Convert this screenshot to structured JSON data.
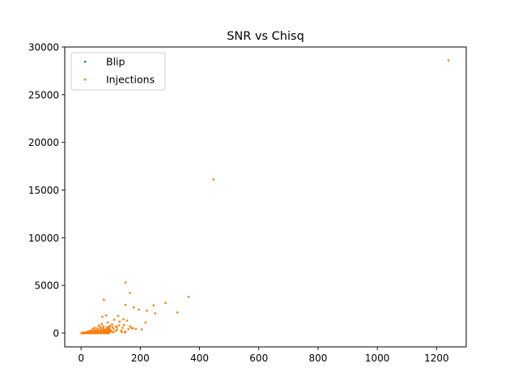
{
  "chart_data": {
    "type": "scatter",
    "title": "SNR vs Chisq",
    "xlabel": "",
    "ylabel": "",
    "xlim": [
      -55,
      1300
    ],
    "ylim": [
      -1450,
      30000
    ],
    "xticks": [
      0,
      200,
      400,
      600,
      800,
      1000,
      1200
    ],
    "yticks": [
      0,
      5000,
      10000,
      15000,
      20000,
      25000,
      30000
    ],
    "grid": false,
    "legend_position": "top-left",
    "series": [
      {
        "name": "Blip",
        "color": "#1f77b4",
        "points": [
          [
            2,
            5
          ],
          [
            4,
            12
          ],
          [
            5,
            8
          ],
          [
            6,
            20
          ],
          [
            8,
            15
          ]
        ]
      },
      {
        "name": "Injections",
        "color": "#ff7f0e",
        "points": [
          [
            1240,
            28600
          ],
          [
            447,
            16100
          ],
          [
            150,
            5300
          ],
          [
            165,
            4200
          ],
          [
            363,
            3800
          ],
          [
            77,
            3500
          ],
          [
            285,
            3150
          ],
          [
            150,
            2950
          ],
          [
            245,
            2900
          ],
          [
            178,
            2700
          ],
          [
            195,
            2450
          ],
          [
            222,
            2350
          ],
          [
            250,
            2050
          ],
          [
            325,
            2150
          ],
          [
            72,
            1700
          ],
          [
            85,
            1850
          ],
          [
            125,
            1800
          ],
          [
            143,
            1450
          ],
          [
            155,
            1300
          ],
          [
            112,
            1400
          ],
          [
            218,
            1100
          ],
          [
            130,
            1200
          ],
          [
            90,
            1100
          ],
          [
            105,
            900
          ],
          [
            165,
            700
          ],
          [
            175,
            500
          ],
          [
            95,
            650
          ],
          [
            120,
            600
          ],
          [
            60,
            800
          ],
          [
            70,
            950
          ],
          [
            45,
            550
          ],
          [
            40,
            400
          ],
          [
            55,
            300
          ],
          [
            35,
            250
          ],
          [
            25,
            150
          ],
          [
            20,
            100
          ],
          [
            15,
            60
          ],
          [
            10,
            30
          ],
          [
            5,
            10
          ],
          [
            30,
            200
          ],
          [
            50,
            350
          ],
          [
            65,
            450
          ],
          [
            75,
            500
          ],
          [
            80,
            350
          ],
          [
            100,
            300
          ],
          [
            110,
            450
          ],
          [
            135,
            250
          ],
          [
            140,
            550
          ],
          [
            160,
            400
          ],
          [
            150,
            150
          ],
          [
            88,
            600
          ],
          [
            98,
            750
          ],
          [
            62,
            150
          ],
          [
            48,
            100
          ],
          [
            38,
            50
          ],
          [
            28,
            80
          ],
          [
            18,
            40
          ],
          [
            12,
            20
          ],
          [
            8,
            5
          ],
          [
            42,
            180
          ],
          [
            58,
            220
          ],
          [
            68,
            280
          ],
          [
            78,
            320
          ],
          [
            84,
            180
          ],
          [
            92,
            220
          ],
          [
            102,
            150
          ],
          [
            116,
            200
          ],
          [
            122,
            350
          ],
          [
            128,
            800
          ],
          [
            145,
            850
          ],
          [
            170,
            550
          ],
          [
            185,
            420
          ],
          [
            205,
            380
          ],
          [
            72,
            120
          ],
          [
            52,
            60
          ],
          [
            33,
            120
          ],
          [
            22,
            70
          ],
          [
            46,
            260
          ],
          [
            56,
            520
          ],
          [
            66,
            640
          ],
          [
            76,
            720
          ],
          [
            86,
            420
          ],
          [
            96,
            520
          ],
          [
            106,
            620
          ],
          [
            118,
            700
          ],
          [
            26,
            30
          ],
          [
            36,
            90
          ],
          [
            44,
            30
          ],
          [
            54,
            140
          ],
          [
            64,
            90
          ],
          [
            74,
            60
          ],
          [
            82,
            100
          ],
          [
            94,
            40
          ],
          [
            108,
            90
          ],
          [
            138,
            100
          ],
          [
            148,
            50
          ]
        ]
      }
    ],
    "legend": [
      "Blip",
      "Injections"
    ]
  }
}
